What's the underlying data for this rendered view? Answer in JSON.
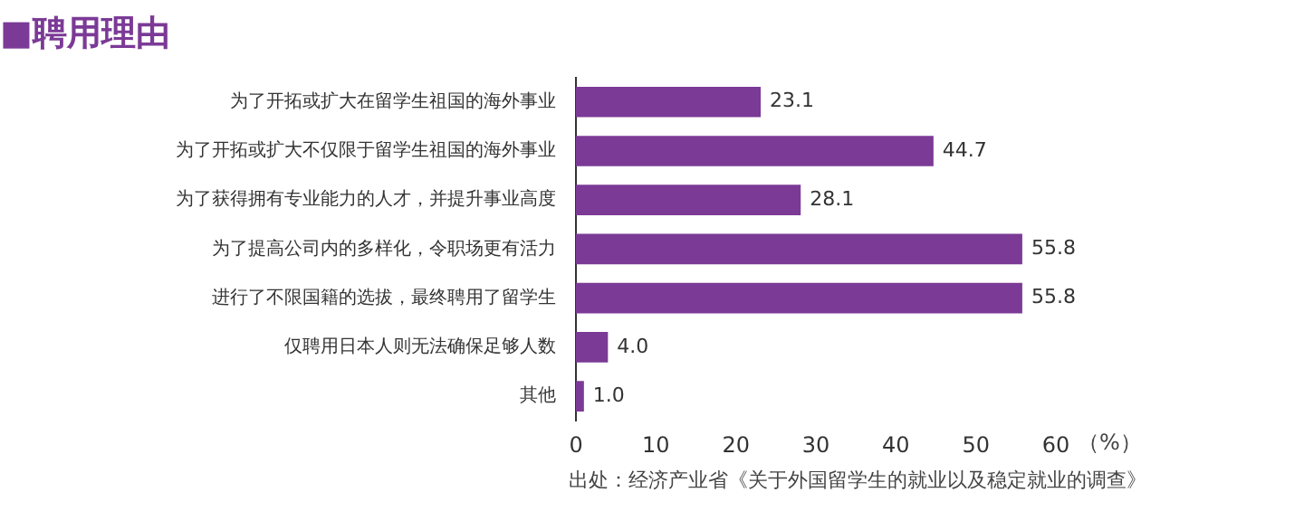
{
  "chart_data": {
    "type": "bar",
    "orientation": "horizontal",
    "title": "■聘用理由",
    "categories": [
      "为了开拓或扩大在留学生祖国的海外事业",
      "为了开拓或扩大不仅限于留学生祖国的海外事业",
      "为了获得拥有专业能力的人才，并提升事业高度",
      "为了提高公司内的多样化，令职场更有活力",
      "进行了不限国籍的选拔，最终聘用了留学生",
      "仅聘用日本人则无法确保足够人数",
      "其他"
    ],
    "values": [
      23.1,
      44.7,
      28.1,
      55.8,
      55.8,
      4.0,
      1.0
    ],
    "value_labels": [
      "23.1",
      "44.7",
      "28.1",
      "55.8",
      "55.8",
      "4.0",
      "1.0"
    ],
    "color": "#7b3a96",
    "xlabel": "（%）",
    "xlim": [
      0,
      60
    ],
    "xticks": [
      0,
      10,
      20,
      30,
      40,
      50,
      60
    ],
    "grid": false,
    "legend": false,
    "annotations": [
      "出处：经济产业省《关于外国留学生的就业以及稳定就业的调查》"
    ]
  }
}
